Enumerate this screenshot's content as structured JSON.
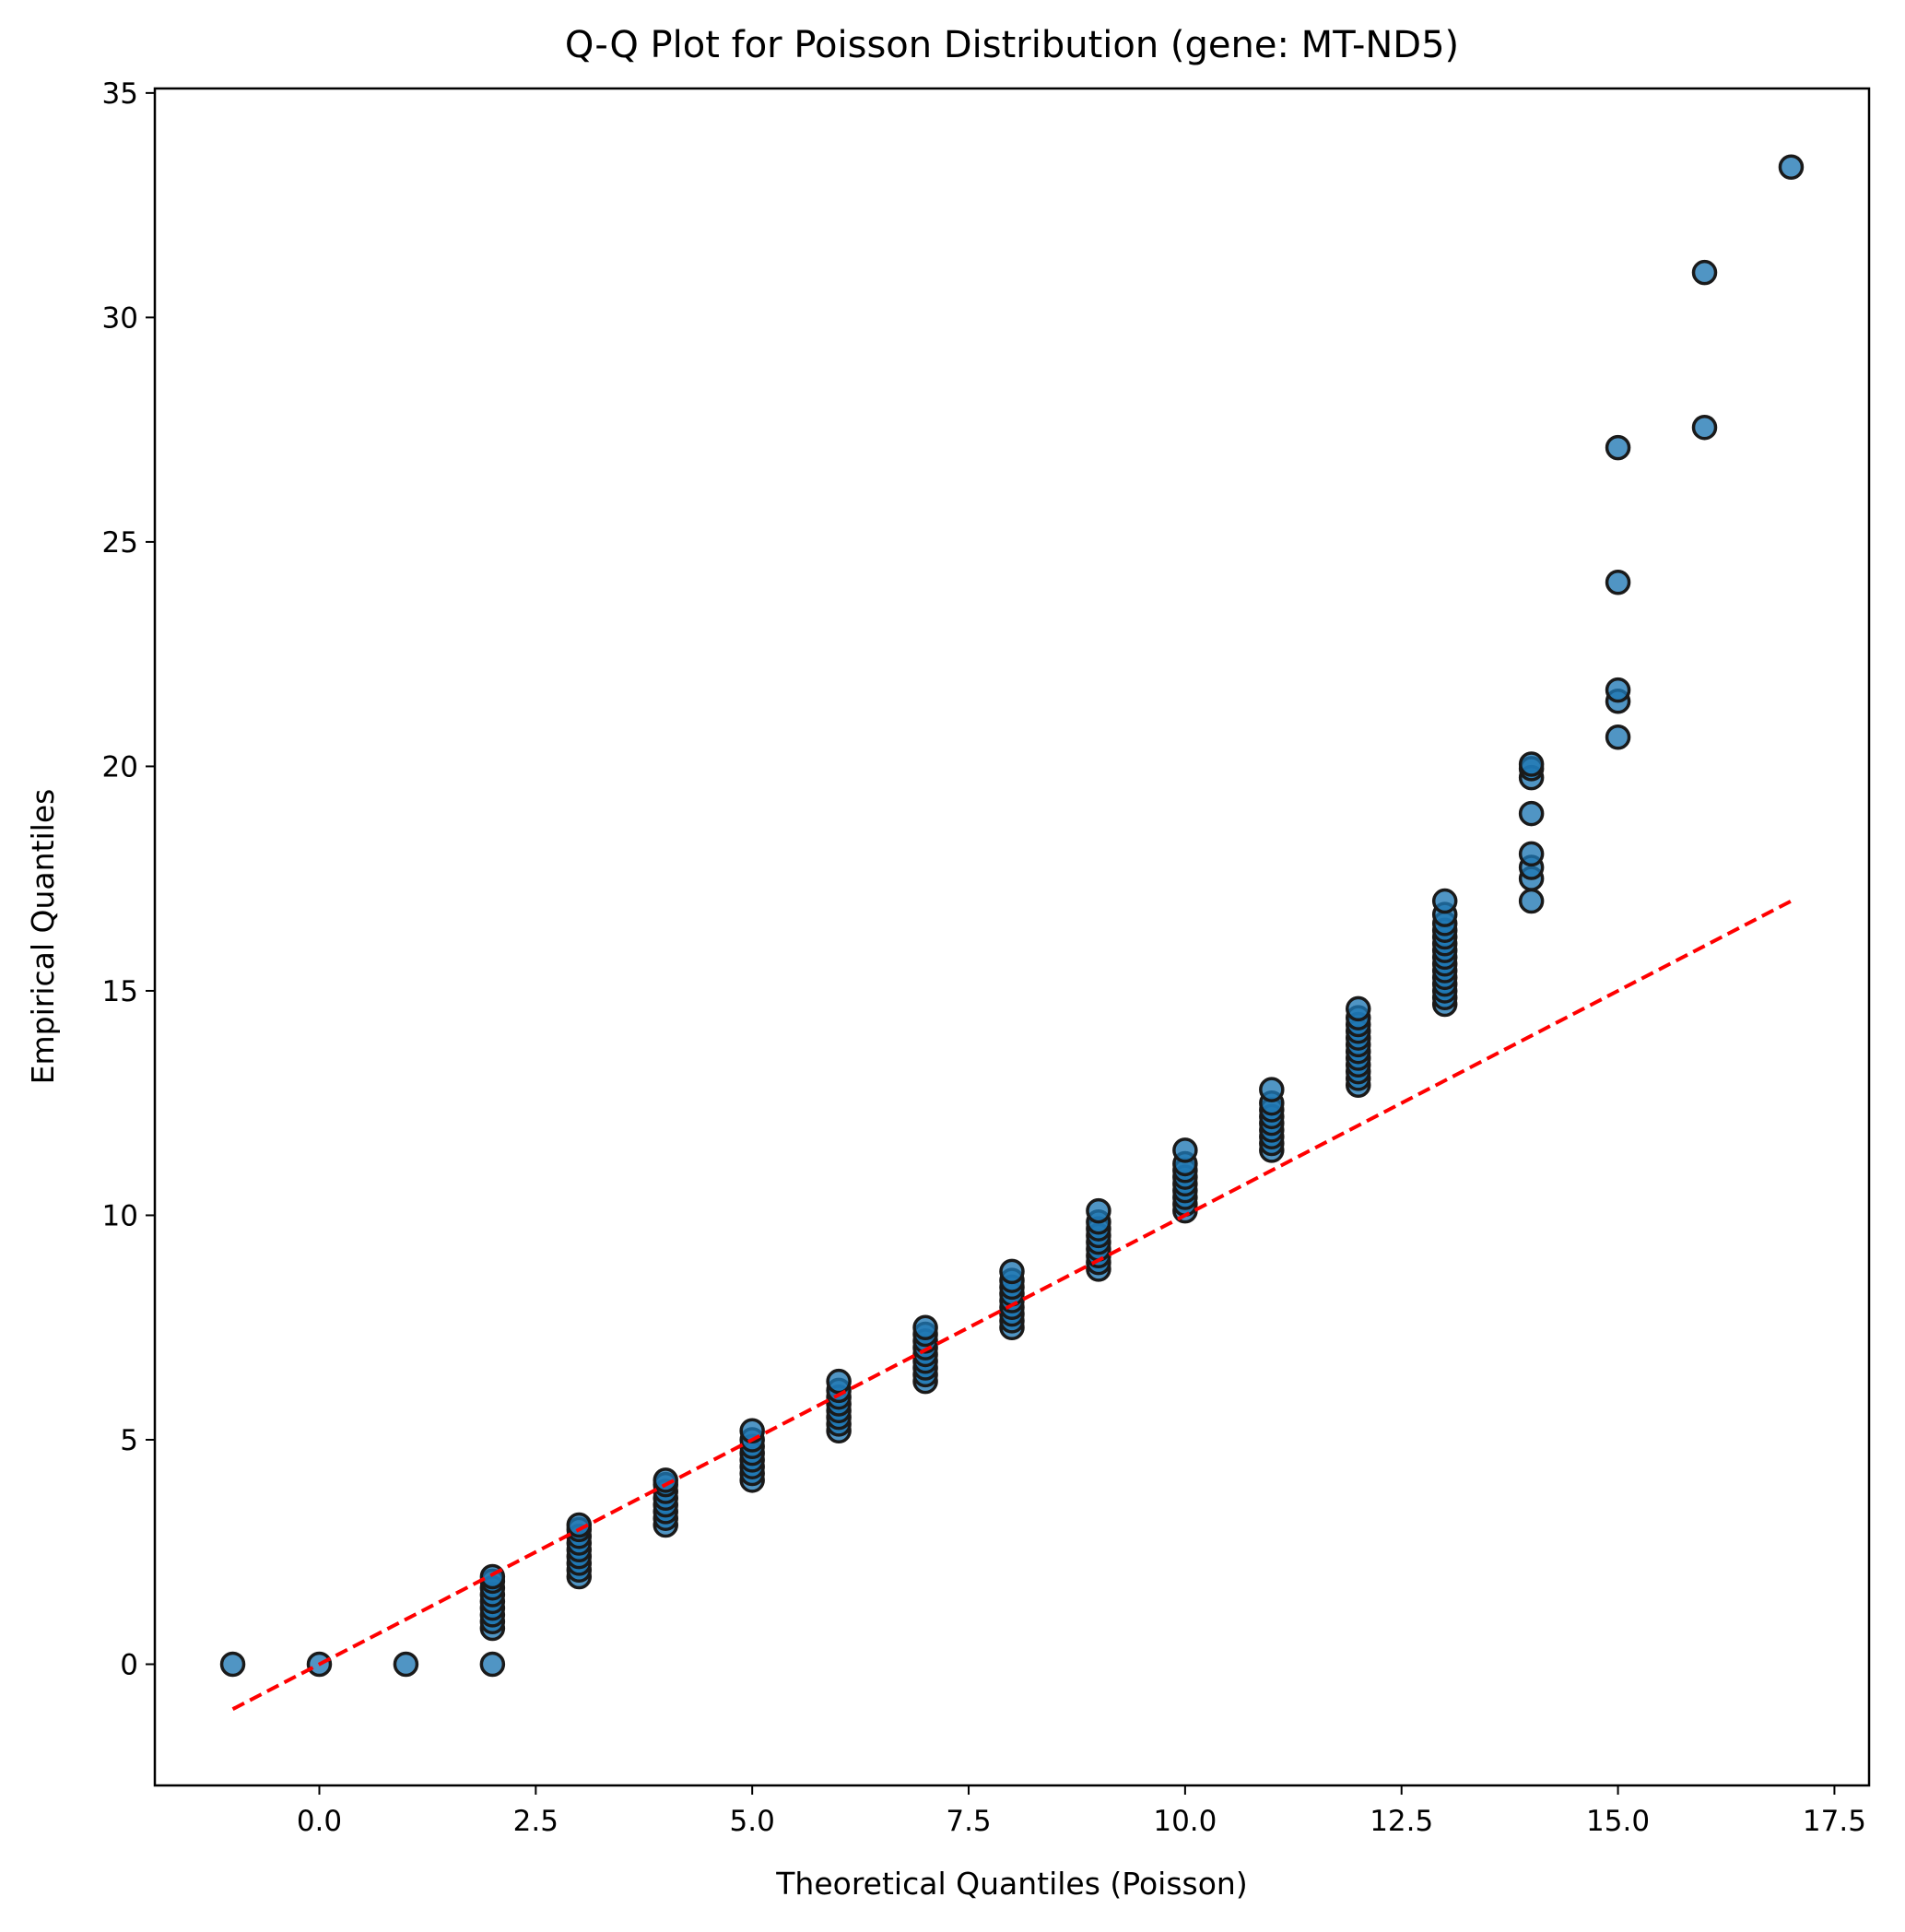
{
  "chart_data": {
    "type": "scatter",
    "title": "Q-Q Plot for Poisson Distribution (gene: MT-ND5)",
    "xlabel": "Theoretical Quantiles (Poisson)",
    "ylabel": "Empirical Quantiles",
    "xlim": [
      -1.9,
      17.9
    ],
    "ylim": [
      -2.7,
      35.1
    ],
    "xticks": [
      0.0,
      2.5,
      5.0,
      7.5,
      10.0,
      12.5,
      15.0,
      17.5
    ],
    "xtick_labels": [
      "0.0",
      "2.5",
      "5.0",
      "7.5",
      "10.0",
      "12.5",
      "15.0",
      "17.5"
    ],
    "yticks": [
      0,
      5,
      10,
      15,
      20,
      25,
      30,
      35
    ],
    "ytick_labels": [
      "0",
      "5",
      "10",
      "15",
      "20",
      "25",
      "30",
      "35"
    ],
    "grid": false,
    "reference_line": {
      "style": "dashed",
      "color": "#ff0000",
      "x": [
        -1,
        17
      ],
      "y": [
        -1,
        17
      ]
    },
    "colors": {
      "points": "#1f77b4",
      "point_edge": "#1a1a1a",
      "line": "#ff0000"
    },
    "series": [
      {
        "points": [
          [
            -1,
            0.0
          ],
          [
            0,
            0.0
          ],
          [
            1,
            0.0
          ],
          [
            2,
            0.0
          ],
          [
            2,
            0.8
          ],
          [
            2,
            0.95
          ],
          [
            2,
            1.1
          ],
          [
            2,
            1.25
          ],
          [
            2,
            1.4
          ],
          [
            2,
            1.55
          ],
          [
            2,
            1.7
          ],
          [
            2,
            1.85
          ],
          [
            2,
            1.95
          ],
          [
            3,
            1.95
          ],
          [
            3,
            2.1
          ],
          [
            3,
            2.25
          ],
          [
            3,
            2.4
          ],
          [
            3,
            2.55
          ],
          [
            3,
            2.7
          ],
          [
            3,
            2.85
          ],
          [
            3,
            3.0
          ],
          [
            3,
            3.1
          ],
          [
            4,
            3.1
          ],
          [
            4,
            3.25
          ],
          [
            4,
            3.4
          ],
          [
            4,
            3.55
          ],
          [
            4,
            3.7
          ],
          [
            4,
            3.85
          ],
          [
            4,
            4.0
          ],
          [
            4,
            4.1
          ],
          [
            5,
            4.1
          ],
          [
            5,
            4.25
          ],
          [
            5,
            4.4
          ],
          [
            5,
            4.55
          ],
          [
            5,
            4.7
          ],
          [
            5,
            4.85
          ],
          [
            5,
            5.0
          ],
          [
            5,
            5.2
          ],
          [
            6,
            5.2
          ],
          [
            6,
            5.35
          ],
          [
            6,
            5.5
          ],
          [
            6,
            5.65
          ],
          [
            6,
            5.8
          ],
          [
            6,
            5.95
          ],
          [
            6,
            6.1
          ],
          [
            6,
            6.3
          ],
          [
            7,
            6.3
          ],
          [
            7,
            6.45
          ],
          [
            7,
            6.6
          ],
          [
            7,
            6.75
          ],
          [
            7,
            6.9
          ],
          [
            7,
            7.05
          ],
          [
            7,
            7.2
          ],
          [
            7,
            7.35
          ],
          [
            7,
            7.5
          ],
          [
            8,
            7.5
          ],
          [
            8,
            7.65
          ],
          [
            8,
            7.8
          ],
          [
            8,
            7.95
          ],
          [
            8,
            8.1
          ],
          [
            8,
            8.25
          ],
          [
            8,
            8.4
          ],
          [
            8,
            8.55
          ],
          [
            8,
            8.75
          ],
          [
            9,
            8.8
          ],
          [
            9,
            8.95
          ],
          [
            9,
            9.1
          ],
          [
            9,
            9.25
          ],
          [
            9,
            9.4
          ],
          [
            9,
            9.55
          ],
          [
            9,
            9.7
          ],
          [
            9,
            9.85
          ],
          [
            9,
            10.1
          ],
          [
            10,
            10.1
          ],
          [
            10,
            10.25
          ],
          [
            10,
            10.4
          ],
          [
            10,
            10.55
          ],
          [
            10,
            10.7
          ],
          [
            10,
            10.85
          ],
          [
            10,
            11.0
          ],
          [
            10,
            11.15
          ],
          [
            10,
            11.45
          ],
          [
            11,
            11.45
          ],
          [
            11,
            11.6
          ],
          [
            11,
            11.75
          ],
          [
            11,
            11.9
          ],
          [
            11,
            12.05
          ],
          [
            11,
            12.2
          ],
          [
            11,
            12.35
          ],
          [
            11,
            12.5
          ],
          [
            11,
            12.8
          ],
          [
            12,
            12.9
          ],
          [
            12,
            13.05
          ],
          [
            12,
            13.2
          ],
          [
            12,
            13.35
          ],
          [
            12,
            13.5
          ],
          [
            12,
            13.65
          ],
          [
            12,
            13.8
          ],
          [
            12,
            13.95
          ],
          [
            12,
            14.1
          ],
          [
            12,
            14.25
          ],
          [
            12,
            14.4
          ],
          [
            12,
            14.6
          ],
          [
            13,
            14.7
          ],
          [
            13,
            14.85
          ],
          [
            13,
            15.0
          ],
          [
            13,
            15.15
          ],
          [
            13,
            15.3
          ],
          [
            13,
            15.45
          ],
          [
            13,
            15.6
          ],
          [
            13,
            15.75
          ],
          [
            13,
            15.9
          ],
          [
            13,
            16.05
          ],
          [
            13,
            16.2
          ],
          [
            13,
            16.35
          ],
          [
            13,
            16.5
          ],
          [
            13,
            16.7
          ],
          [
            13,
            17.0
          ],
          [
            14,
            17.0
          ],
          [
            14,
            17.5
          ],
          [
            14,
            17.75
          ],
          [
            14,
            18.05
          ],
          [
            14,
            18.95
          ],
          [
            14,
            19.75
          ],
          [
            14,
            19.95
          ],
          [
            14,
            20.05
          ],
          [
            15,
            20.65
          ],
          [
            15,
            21.45
          ],
          [
            15,
            21.7
          ],
          [
            15,
            24.1
          ],
          [
            15,
            27.1
          ],
          [
            16,
            27.55
          ],
          [
            16,
            31.0
          ],
          [
            17,
            33.35
          ]
        ]
      }
    ]
  }
}
